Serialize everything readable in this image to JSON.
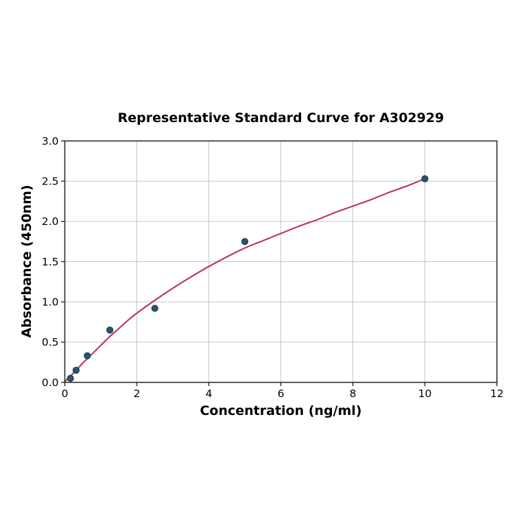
{
  "chart_data": {
    "type": "scatter",
    "title": "Representative Standard Curve for A302929",
    "xlabel": "Concentration (ng/ml)",
    "ylabel": "Absorbance (450nm)",
    "xlim": [
      0,
      12
    ],
    "ylim": [
      0,
      3
    ],
    "xticks": [
      0,
      2,
      4,
      6,
      8,
      10,
      12
    ],
    "xtick_labels": [
      "0",
      "2",
      "4",
      "6",
      "8",
      "10",
      "12"
    ],
    "yticks": [
      0,
      0.5,
      1,
      1.5,
      2,
      2.5,
      3
    ],
    "ytick_labels": [
      "0.0",
      "0.5",
      "1.0",
      "1.5",
      "2.0",
      "2.5",
      "3.0"
    ],
    "grid": true,
    "legend": "none",
    "points": {
      "x": [
        0.156,
        0.313,
        0.625,
        1.25,
        2.5,
        5,
        10
      ],
      "y": [
        0.05,
        0.15,
        0.33,
        0.65,
        0.92,
        1.75,
        2.53
      ]
    },
    "fit_curve": [
      [
        0,
        0.01
      ],
      [
        0.25,
        0.12
      ],
      [
        0.5,
        0.24
      ],
      [
        0.75,
        0.35
      ],
      [
        1,
        0.46
      ],
      [
        1.25,
        0.57
      ],
      [
        1.5,
        0.67
      ],
      [
        1.75,
        0.77
      ],
      [
        2,
        0.86
      ],
      [
        2.5,
        1.02
      ],
      [
        3,
        1.17
      ],
      [
        3.5,
        1.31
      ],
      [
        4,
        1.44
      ],
      [
        4.5,
        1.56
      ],
      [
        5,
        1.67
      ],
      [
        5.5,
        1.76
      ],
      [
        6,
        1.85
      ],
      [
        6.5,
        1.94
      ],
      [
        7,
        2.02
      ],
      [
        7.5,
        2.11
      ],
      [
        8,
        2.19
      ],
      [
        8.5,
        2.27
      ],
      [
        9,
        2.36
      ],
      [
        9.5,
        2.44
      ],
      [
        10,
        2.53
      ]
    ],
    "colors": {
      "point_fill": "#2a536f",
      "point_edge": "#16384f",
      "curve": "#c0395e",
      "grid": "#c6c6c6",
      "spine": "#2b2b2b",
      "tick_text": "#000000"
    }
  }
}
